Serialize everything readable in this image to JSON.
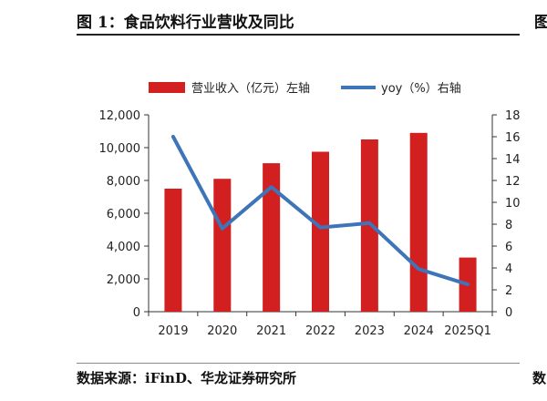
{
  "figure": {
    "title": "图 1：食品饮料行业营收及同比",
    "source": "数据来源：iFinD、华龙证券研究所",
    "edge_glyph_top": "图",
    "edge_glyph_bottom": "数"
  },
  "chart_data": {
    "type": "bar",
    "categories": [
      "2019",
      "2020",
      "2021",
      "2022",
      "2023",
      "2024",
      "2025Q1"
    ],
    "series": [
      {
        "name": "营业收入（亿元）左轴",
        "type": "bar",
        "axis": "left",
        "color": "#D21F1F",
        "values": [
          7500,
          8100,
          9050,
          9750,
          10500,
          10900,
          3300
        ]
      },
      {
        "name": "yoy（%）右轴",
        "type": "line",
        "axis": "right",
        "color": "#3E74B8",
        "values": [
          16.0,
          7.6,
          11.4,
          7.7,
          8.1,
          3.9,
          2.5
        ]
      }
    ],
    "y_left": {
      "ylim": [
        0,
        12000
      ],
      "ticks": [
        0,
        2000,
        4000,
        6000,
        8000,
        10000,
        12000
      ],
      "tick_labels": [
        "0",
        "2,000",
        "4,000",
        "6,000",
        "8,000",
        "10,000",
        "12,000"
      ]
    },
    "y_right": {
      "ylim": [
        0,
        18
      ],
      "ticks": [
        0,
        2,
        4,
        6,
        8,
        10,
        12,
        14,
        16,
        18
      ],
      "tick_labels": [
        "0",
        "2",
        "4",
        "6",
        "8",
        "10",
        "12",
        "14",
        "16",
        "18"
      ]
    },
    "grid": false,
    "legend": "top-center"
  }
}
